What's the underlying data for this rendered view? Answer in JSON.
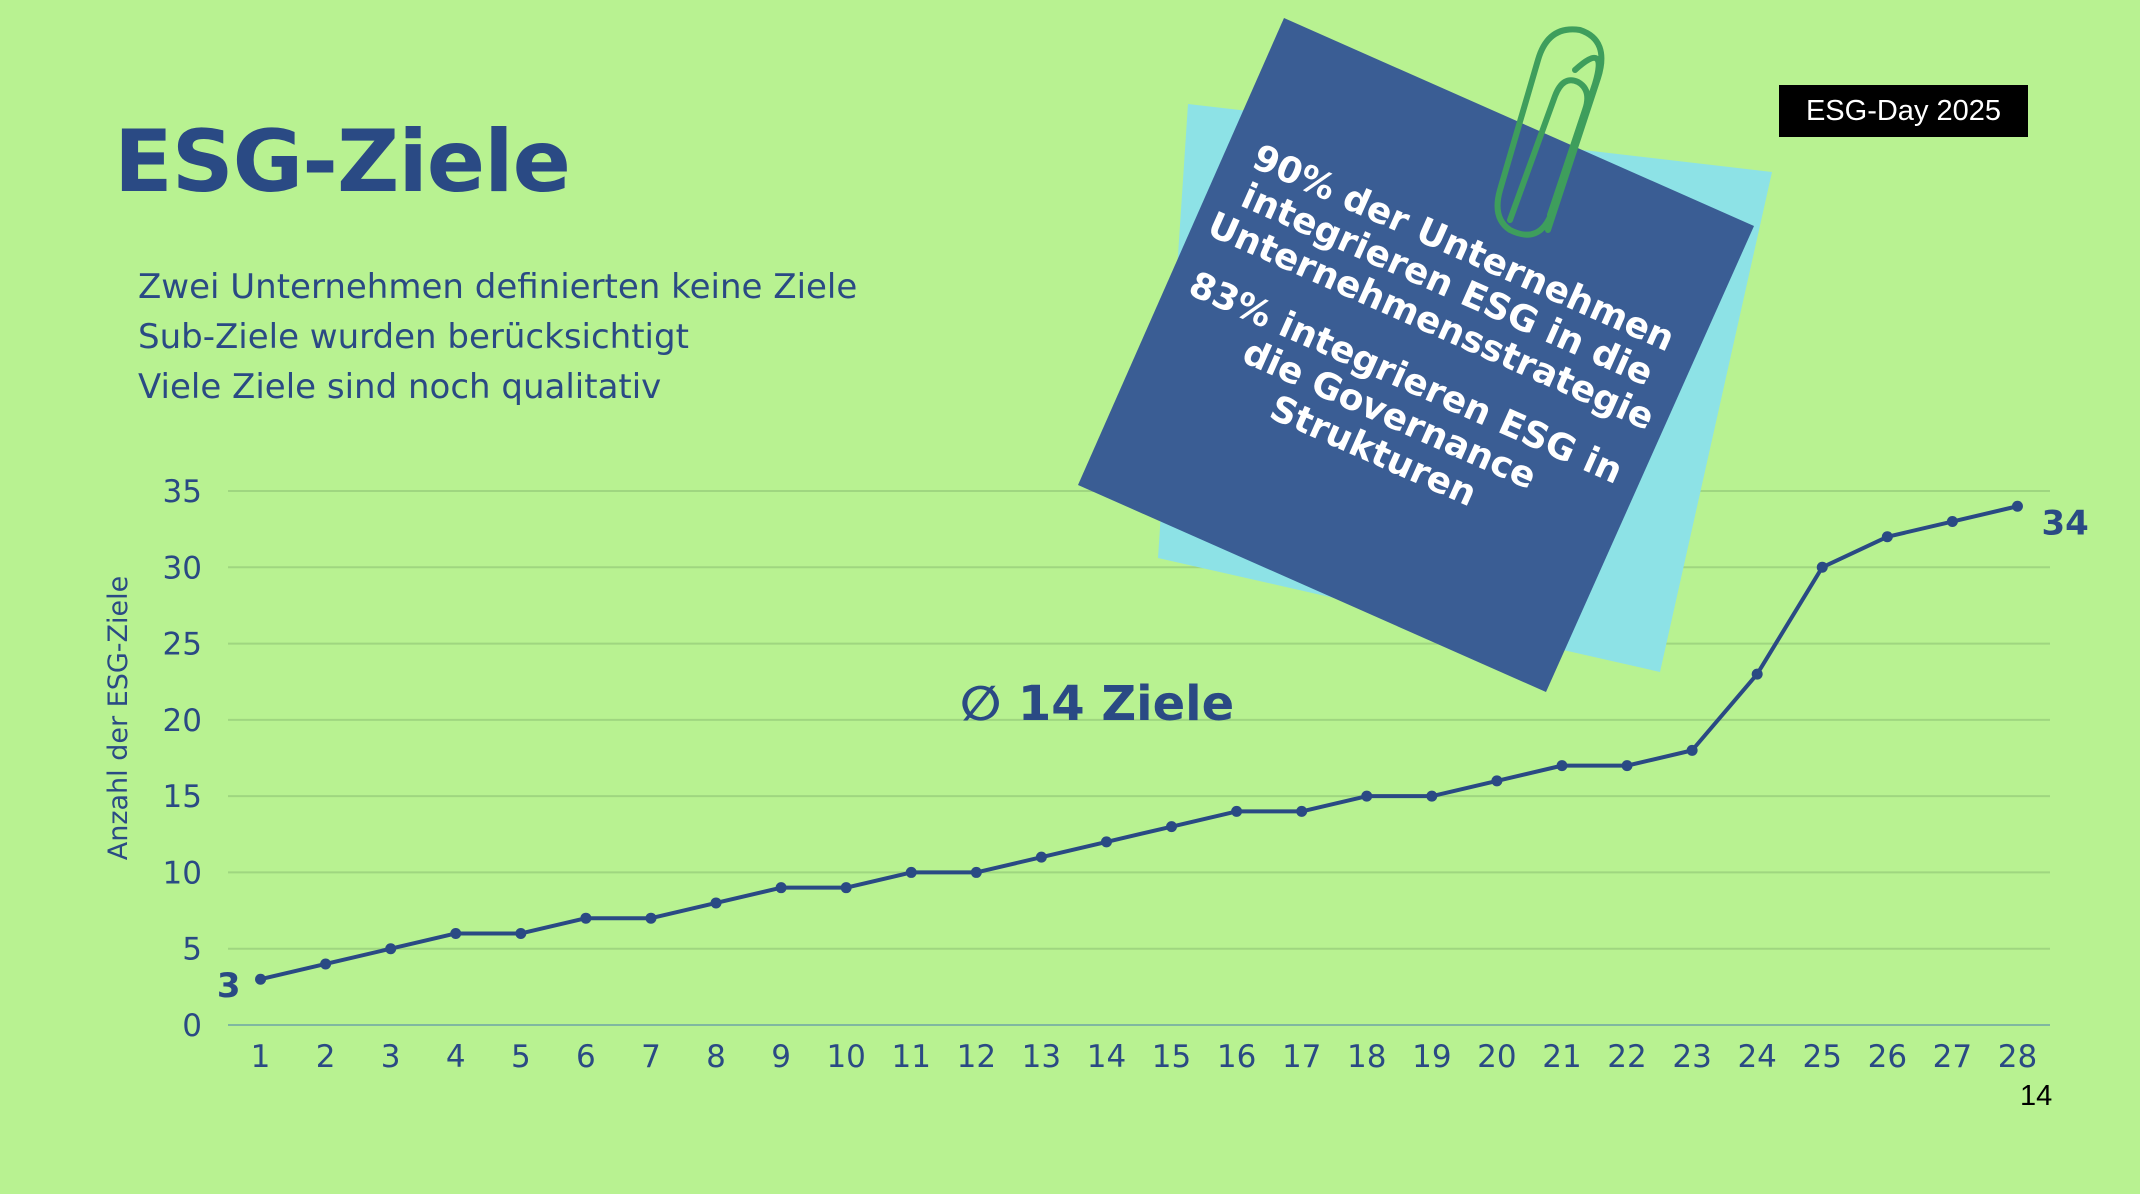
{
  "slide": {
    "title": "ESG-Ziele",
    "bullets": [
      "Zwei Unternehmen definierten keine Ziele",
      "Sub-Ziele wurden berücksichtigt",
      "Viele Ziele sind noch qualitativ"
    ],
    "event_badge": "ESG-Day 2025",
    "page_number": "14",
    "average_label": "∅ 14 Ziele",
    "note": {
      "lines_1": [
        "90% der Unternehmen",
        "integrieren ESG in die",
        "Unternehmensstrategie"
      ],
      "lines_2": [
        "83% integrieren ESG in",
        "die Governance",
        "Strukturen"
      ]
    },
    "colors": {
      "background": "#b8f291",
      "accent": "#2a4a84",
      "note_front": "#3a5d94",
      "note_back": "#8de2e6",
      "paperclip": "#3e9e5c",
      "gridline": "#9fd680"
    },
    "icons": [
      "paperclip-icon"
    ]
  },
  "chart_data": {
    "type": "line",
    "title": "",
    "xlabel": "",
    "ylabel": "Anzahl der ESG-Ziele",
    "x": [
      1,
      2,
      3,
      4,
      5,
      6,
      7,
      8,
      9,
      10,
      11,
      12,
      13,
      14,
      15,
      16,
      17,
      18,
      19,
      20,
      21,
      22,
      23,
      24,
      25,
      26,
      27,
      28
    ],
    "series": [
      {
        "values": [
          3,
          4,
          5,
          6,
          6,
          7,
          7,
          8,
          9,
          9,
          10,
          10,
          11,
          12,
          13,
          14,
          14,
          15,
          15,
          16,
          17,
          17,
          18,
          23,
          30,
          32,
          33,
          34
        ]
      }
    ],
    "yticks": [
      0,
      5,
      10,
      15,
      20,
      25,
      30,
      35
    ],
    "ylim": [
      0,
      35
    ],
    "grid": true,
    "legend": "none",
    "point_labels": [
      {
        "index": 0,
        "text": "3"
      },
      {
        "index": 27,
        "text": "34"
      }
    ]
  }
}
